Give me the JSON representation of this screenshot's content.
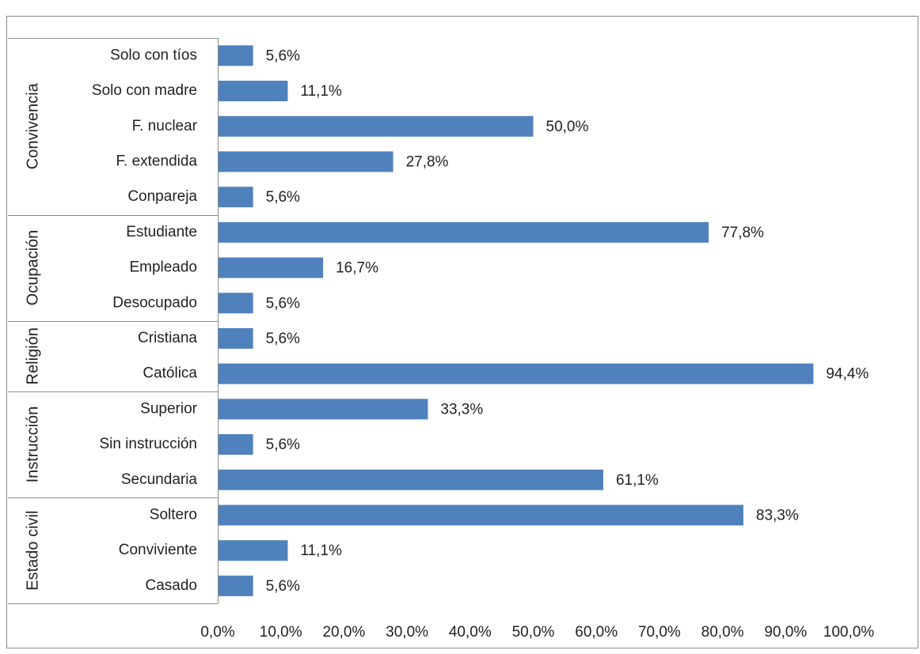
{
  "chart_data": {
    "type": "bar",
    "orientation": "horizontal",
    "grid": false,
    "legend": "none",
    "xlim": [
      0,
      100
    ],
    "x_tick_labels": [
      "0,0%",
      "10,0%",
      "20,0%",
      "30,0%",
      "40,0%",
      "50,0%",
      "60,0%",
      "70,0%",
      "80,0%",
      "90,0%",
      "100,0%"
    ],
    "groups": [
      {
        "name": "Convivencia",
        "categories": [
          "Solo con tíos",
          "Solo con madre",
          "F. nuclear",
          "F. extendida",
          "Conpareja"
        ],
        "values": [
          5.6,
          11.1,
          50.0,
          27.8,
          5.6
        ],
        "labels": [
          "5,6%",
          "11,1%",
          "50,0%",
          "27,8%",
          "5,6%"
        ]
      },
      {
        "name": "Ocupación",
        "categories": [
          "Estudiante",
          "Empleado",
          "Desocupado"
        ],
        "values": [
          77.8,
          16.7,
          5.6
        ],
        "labels": [
          "77,8%",
          "16,7%",
          "5,6%"
        ]
      },
      {
        "name": "Religión",
        "categories": [
          "Cristiana",
          "Católica"
        ],
        "values": [
          5.6,
          94.4
        ],
        "labels": [
          "5,6%",
          "94,4%"
        ]
      },
      {
        "name": "Instrucción",
        "categories": [
          "Superior",
          "Sin instrucción",
          "Secundaria"
        ],
        "values": [
          33.3,
          5.6,
          61.1
        ],
        "labels": [
          "33,3%",
          "5,6%",
          "61,1%"
        ]
      },
      {
        "name": "Estado civil",
        "categories": [
          "Soltero",
          "Conviviente",
          "Casado"
        ],
        "values": [
          83.3,
          11.1,
          5.6
        ],
        "labels": [
          "83,3%",
          "11,1%",
          "5,6%"
        ]
      }
    ],
    "colors": {
      "bar": "#4F81BD",
      "frame": "#8C8C8C",
      "text": "#222222"
    }
  }
}
